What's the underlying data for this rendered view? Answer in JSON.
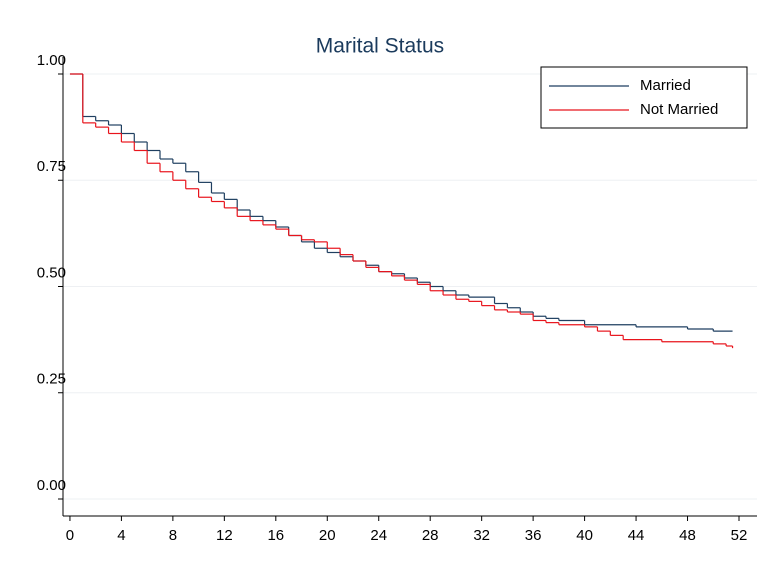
{
  "chart_data": {
    "type": "step",
    "title": "Marital Status",
    "xlim": [
      -0.54,
      53.4
    ],
    "ylim": [
      -0.04,
      1.04
    ],
    "xticks": [
      0,
      4,
      8,
      12,
      16,
      20,
      24,
      28,
      32,
      36,
      40,
      44,
      48,
      52
    ],
    "yticks": [
      {
        "value": 0,
        "label": "0.00"
      },
      {
        "value": 0.25,
        "label": "0.25"
      },
      {
        "value": 0.5,
        "label": "0.50"
      },
      {
        "value": 0.75,
        "label": "0.75"
      },
      {
        "value": 1,
        "label": "1.00"
      }
    ],
    "grid": true,
    "legend": "top-right",
    "series": [
      {
        "name": "Married",
        "color": "#1f3f60",
        "x": [
          0,
          1,
          2,
          3,
          4,
          5,
          6,
          7,
          8,
          9,
          10,
          11,
          12,
          13,
          14,
          15,
          16,
          17,
          18,
          19,
          20,
          21,
          22,
          23,
          24,
          25,
          26,
          27,
          28,
          29,
          30,
          31,
          33,
          34,
          35,
          36,
          37,
          38,
          40,
          44,
          48,
          50,
          51.5
        ],
        "values": [
          1.0,
          0.9,
          0.89,
          0.88,
          0.86,
          0.84,
          0.82,
          0.8,
          0.79,
          0.77,
          0.745,
          0.72,
          0.705,
          0.68,
          0.665,
          0.655,
          0.64,
          0.62,
          0.605,
          0.59,
          0.58,
          0.57,
          0.56,
          0.55,
          0.535,
          0.53,
          0.52,
          0.51,
          0.5,
          0.49,
          0.48,
          0.475,
          0.46,
          0.45,
          0.44,
          0.43,
          0.425,
          0.42,
          0.41,
          0.405,
          0.4,
          0.395,
          0.395
        ]
      },
      {
        "name": "Not Married",
        "color": "#e8141c",
        "x": [
          0,
          1,
          2,
          3,
          4,
          5,
          6,
          7,
          8,
          9,
          10,
          11,
          12,
          13,
          14,
          15,
          16,
          17,
          18,
          19,
          20,
          21,
          22,
          23,
          24,
          25,
          26,
          27,
          28,
          29,
          30,
          31,
          32,
          33,
          34,
          35,
          36,
          37,
          38,
          40,
          41,
          42,
          43,
          46,
          50,
          51,
          51.5
        ],
        "values": [
          1.0,
          0.885,
          0.875,
          0.86,
          0.84,
          0.82,
          0.79,
          0.77,
          0.75,
          0.73,
          0.71,
          0.7,
          0.685,
          0.665,
          0.655,
          0.645,
          0.635,
          0.62,
          0.61,
          0.605,
          0.59,
          0.575,
          0.56,
          0.545,
          0.535,
          0.525,
          0.515,
          0.505,
          0.49,
          0.48,
          0.47,
          0.465,
          0.455,
          0.445,
          0.44,
          0.435,
          0.42,
          0.415,
          0.41,
          0.405,
          0.395,
          0.385,
          0.375,
          0.37,
          0.365,
          0.36,
          0.355
        ]
      }
    ]
  }
}
